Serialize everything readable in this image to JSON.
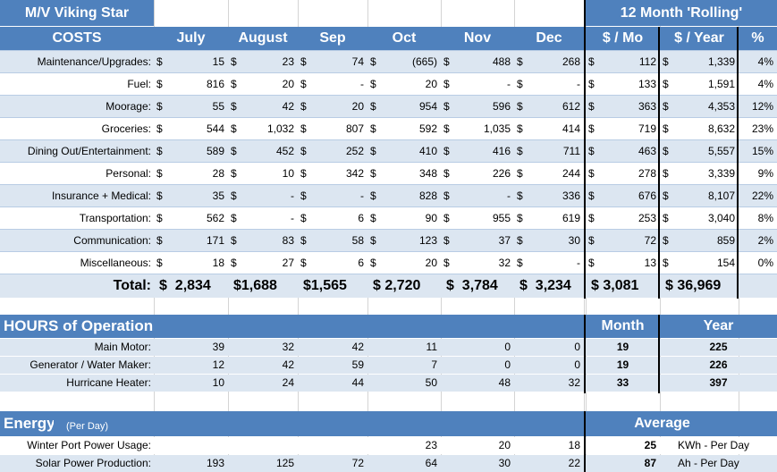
{
  "title": "M/V Viking Star",
  "rolling_title": "12 Month 'Rolling'",
  "costs": {
    "header": "COSTS",
    "months": [
      "July",
      "August",
      "Sep",
      "Oct",
      "Nov",
      "Dec"
    ],
    "per_mo_header": "$ / Mo",
    "per_year_header": "$ /  Year",
    "pct_header": "%",
    "currency": "$",
    "rows": [
      {
        "label": "Maintenance/Upgrades:",
        "values": [
          "15",
          "23",
          "74",
          "(665)",
          "488",
          "268"
        ],
        "mo": "112",
        "year": "1,339",
        "pct": "4%"
      },
      {
        "label": "Fuel:",
        "values": [
          "816",
          "20",
          "-",
          "20",
          "-",
          "-"
        ],
        "mo": "133",
        "year": "1,591",
        "pct": "4%"
      },
      {
        "label": "Moorage:",
        "values": [
          "55",
          "42",
          "20",
          "954",
          "596",
          "612"
        ],
        "mo": "363",
        "year": "4,353",
        "pct": "12%"
      },
      {
        "label": "Groceries:",
        "values": [
          "544",
          "1,032",
          "807",
          "592",
          "1,035",
          "414"
        ],
        "mo": "719",
        "year": "8,632",
        "pct": "23%"
      },
      {
        "label": "Dining Out/Entertainment:",
        "values": [
          "589",
          "452",
          "252",
          "410",
          "416",
          "711"
        ],
        "mo": "463",
        "year": "5,557",
        "pct": "15%"
      },
      {
        "label": "Personal:",
        "values": [
          "28",
          "10",
          "342",
          "348",
          "226",
          "244"
        ],
        "mo": "278",
        "year": "3,339",
        "pct": "9%"
      },
      {
        "label": "Insurance + Medical:",
        "values": [
          "35",
          "-",
          "-",
          "828",
          "-",
          "336"
        ],
        "mo": "676",
        "year": "8,107",
        "pct": "22%"
      },
      {
        "label": "Transportation:",
        "values": [
          "562",
          "-",
          "6",
          "90",
          "955",
          "619"
        ],
        "mo": "253",
        "year": "3,040",
        "pct": "8%"
      },
      {
        "label": "Communication:",
        "values": [
          "171",
          "83",
          "58",
          "123",
          "37",
          "30"
        ],
        "mo": "72",
        "year": "859",
        "pct": "2%"
      },
      {
        "label": "Miscellaneous:",
        "values": [
          "18",
          "27",
          "6",
          "20",
          "32",
          "-"
        ],
        "mo": "13",
        "year": "154",
        "pct": "0%"
      }
    ],
    "total": {
      "label": "Total:",
      "values": [
        "$  2,834",
        "$1,688",
        "$1,565",
        "$ 2,720",
        "$  3,784",
        "$  3,234"
      ],
      "mo": "$ 3,081",
      "year": "$ 36,969"
    }
  },
  "hours": {
    "header": "HOURS of Operation",
    "month_header": "Month",
    "year_header": "Year",
    "rows": [
      {
        "label": "Main Motor:",
        "values": [
          "39",
          "32",
          "42",
          "11",
          "0",
          "0"
        ],
        "month": "19",
        "year": "225"
      },
      {
        "label": "Generator / Water Maker:",
        "values": [
          "12",
          "42",
          "59",
          "7",
          "0",
          "0"
        ],
        "month": "19",
        "year": "226"
      },
      {
        "label": "Hurricane Heater:",
        "values": [
          "10",
          "24",
          "44",
          "50",
          "48",
          "32"
        ],
        "month": "33",
        "year": "397"
      }
    ]
  },
  "energy": {
    "header": "Energy",
    "subheader": "(Per Day)",
    "average_header": "Average",
    "rows": [
      {
        "label": "Winter Port Power Usage:",
        "values": [
          "",
          "",
          "",
          "23",
          "20",
          "18"
        ],
        "avg": "25",
        "unit": "KWh - Per Day"
      },
      {
        "label": "Solar Power Production:",
        "values": [
          "193",
          "125",
          "72",
          "64",
          "30",
          "22"
        ],
        "avg": "87",
        "unit": "Ah - Per Day"
      }
    ]
  }
}
